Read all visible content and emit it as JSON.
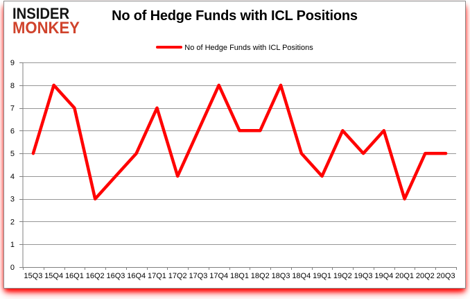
{
  "logo": {
    "line1": "INSIDER",
    "line2": "MONKEY"
  },
  "header": {
    "title": "No of Hedge Funds with ICL Positions"
  },
  "legend": {
    "label": "No of Hedge Funds with ICL Positions",
    "marker_color": "#ff0000"
  },
  "chart_data": {
    "type": "line",
    "title": "No of Hedge Funds with ICL Positions",
    "series": [
      {
        "name": "No of Hedge Funds with ICL Positions",
        "values": [
          5,
          8,
          7,
          3,
          4,
          5,
          7,
          4,
          6,
          8,
          6,
          6,
          8,
          5,
          4,
          6,
          5,
          6,
          3,
          5,
          5
        ]
      }
    ],
    "categories": [
      "15Q3",
      "15Q4",
      "16Q1",
      "16Q2",
      "16Q3",
      "16Q4",
      "17Q1",
      "17Q2",
      "17Q3",
      "17Q4",
      "18Q1",
      "18Q2",
      "18Q3",
      "18Q4",
      "19Q1",
      "19Q2",
      "19Q3",
      "19Q4",
      "20Q1",
      "20Q2",
      "20Q3"
    ],
    "xlabel": "",
    "ylabel": "",
    "ylim": [
      0,
      9
    ],
    "y_ticks": [
      0,
      1,
      2,
      3,
      4,
      5,
      6,
      7,
      8,
      9
    ],
    "grid": true,
    "legend_position": "top",
    "line_color": "#ff0000",
    "line_width": 4.5,
    "gridline_color": "#969696",
    "axis_color": "#808080"
  }
}
